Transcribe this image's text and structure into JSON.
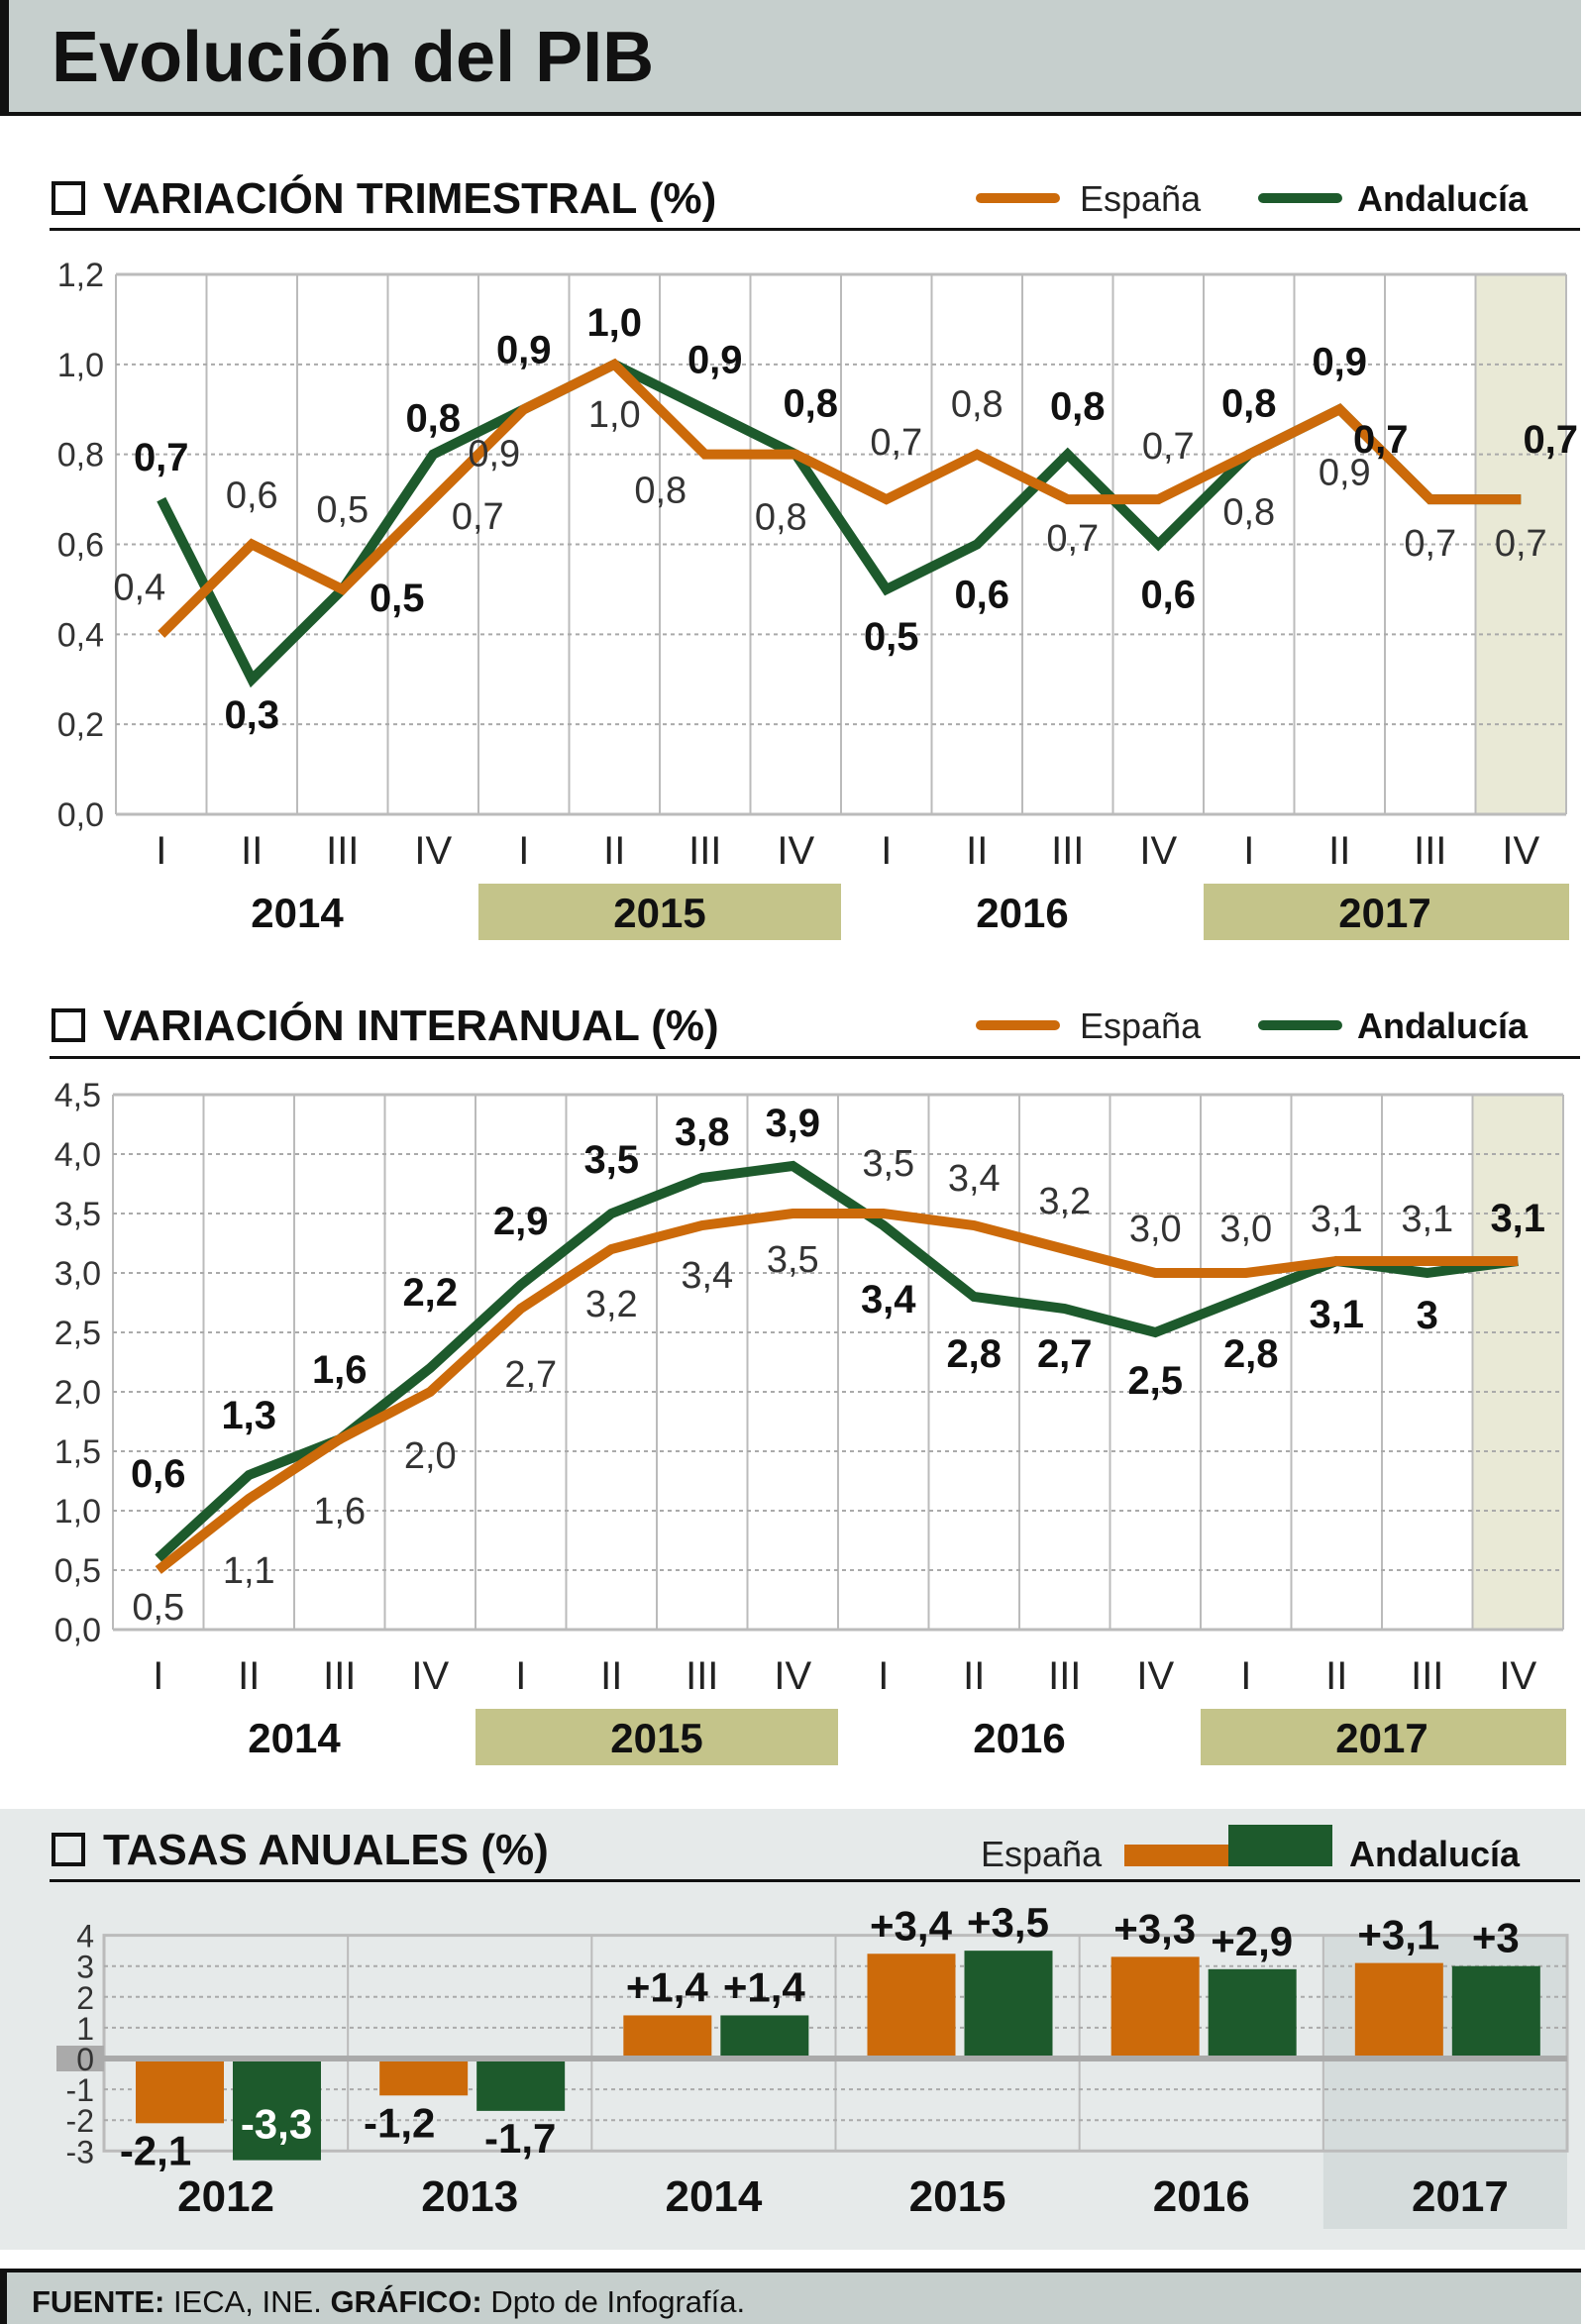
{
  "header": {
    "title": "Evolución del PIB"
  },
  "footer": {
    "source_label": "FUENTE:",
    "source_text": " IECA, INE. ",
    "graphic_label": "GRÁFICO:",
    "graphic_text": " Dpto de Infografía."
  },
  "legend": {
    "spain": "España",
    "andalucia": "Andalucía"
  },
  "colors": {
    "spain": "#cc6a0a",
    "andalucia": "#1d5a2c",
    "year_box": "#c4c48a",
    "highlight": "#e9e9d6",
    "header_bg": "#c6cfcd",
    "annual_bg": "#e6eaea"
  },
  "chart_data": [
    {
      "type": "line",
      "title": "VARIACIÓN TRIMESTRAL (%)",
      "quarters": [
        "I",
        "II",
        "III",
        "IV",
        "I",
        "II",
        "III",
        "IV",
        "I",
        "II",
        "III",
        "IV",
        "I",
        "II",
        "III",
        "IV"
      ],
      "years": [
        "2014",
        "2015",
        "2016",
        "2017"
      ],
      "yticks": [
        "0,0",
        "0,2",
        "0,4",
        "0,6",
        "0,8",
        "1,0",
        "1,2"
      ],
      "ylim": [
        0,
        1.2
      ],
      "grid": true,
      "highlight": "2017 IV",
      "legend": "top-right",
      "series": [
        {
          "name": "España",
          "values": [
            0.4,
            0.6,
            0.5,
            0.7,
            0.9,
            1.0,
            0.8,
            0.8,
            0.7,
            0.8,
            0.7,
            0.7,
            0.8,
            0.9,
            0.7,
            0.7
          ],
          "labels": [
            "0,4",
            "0,6",
            "0,5",
            "0,7",
            "0,9",
            "1,0",
            "0,8",
            "0,8",
            "0,7",
            "0,8",
            "0,7",
            "0,7",
            "0,8",
            "0,9",
            "0,7",
            "0,7"
          ]
        },
        {
          "name": "Andalucía",
          "values": [
            0.7,
            0.3,
            0.5,
            0.8,
            0.9,
            1.0,
            0.9,
            0.8,
            0.5,
            0.6,
            0.8,
            0.6,
            0.8,
            0.9,
            0.7,
            0.7
          ],
          "labels": [
            "0,7",
            "0,3",
            "0,5",
            "0,8",
            "0,9",
            "1,0",
            "0,9",
            "0,8",
            "0,5",
            "0,6",
            "0,8",
            "0,6",
            "0,8",
            "0,9",
            "0,7",
            "0,7"
          ]
        }
      ]
    },
    {
      "type": "line",
      "title": "VARIACIÓN INTERANUAL (%)",
      "quarters": [
        "I",
        "II",
        "III",
        "IV",
        "I",
        "II",
        "III",
        "IV",
        "I",
        "II",
        "III",
        "IV",
        "I",
        "II",
        "III",
        "IV"
      ],
      "years": [
        "2014",
        "2015",
        "2016",
        "2017"
      ],
      "yticks": [
        "0,0",
        "0,5",
        "1,0",
        "1,5",
        "2,0",
        "2,5",
        "3,0",
        "3,5",
        "4,0",
        "4,5"
      ],
      "ylim": [
        0,
        4.5
      ],
      "grid": true,
      "highlight": "2017 IV",
      "legend": "top-right",
      "series": [
        {
          "name": "España",
          "values": [
            0.5,
            1.1,
            1.6,
            2.0,
            2.7,
            3.2,
            3.4,
            3.5,
            3.5,
            3.4,
            3.2,
            3.0,
            3.0,
            3.1,
            3.1,
            3.1
          ],
          "labels": [
            "0,5",
            "1,1",
            "1,6",
            "2,0",
            "2,7",
            "3,2",
            "3,4",
            "3,5",
            "3,5",
            "3,4",
            "3,2",
            "3,0",
            "3,0",
            "3,1",
            "3,1",
            ""
          ]
        },
        {
          "name": "Andalucía",
          "values": [
            0.6,
            1.3,
            1.6,
            2.2,
            2.9,
            3.5,
            3.8,
            3.9,
            3.4,
            2.8,
            2.7,
            2.5,
            2.8,
            3.1,
            3.0,
            3.1
          ],
          "labels": [
            "0,6",
            "1,3",
            "1,6",
            "2,2",
            "2,9",
            "3,5",
            "3,8",
            "3,9",
            "3,4",
            "2,8",
            "2,7",
            "2,5",
            "2,8",
            "3,1",
            "3",
            "3,1"
          ]
        }
      ]
    },
    {
      "type": "bar",
      "title": "TASAS ANUALES (%)",
      "categories": [
        "2012",
        "2013",
        "2014",
        "2015",
        "2016",
        "2017"
      ],
      "yticks": [
        "-3",
        "-2",
        "-1",
        "0",
        "1",
        "2",
        "3",
        "4"
      ],
      "ylim": [
        -3,
        4
      ],
      "grid": true,
      "highlight": "2017",
      "legend": "top-right",
      "series": [
        {
          "name": "España",
          "values": [
            -2.1,
            -1.2,
            1.4,
            3.4,
            3.3,
            3.1
          ],
          "labels": [
            "-2,1",
            "-1,2",
            "+1,4",
            "+3,4",
            "+3,3",
            "+3,1"
          ]
        },
        {
          "name": "Andalucía",
          "values": [
            -3.3,
            -1.7,
            1.4,
            3.5,
            2.9,
            3.0
          ],
          "labels": [
            "-3,3",
            "-1,7",
            "+1,4",
            "+3,5",
            "+2,9",
            "+3"
          ]
        }
      ]
    }
  ]
}
